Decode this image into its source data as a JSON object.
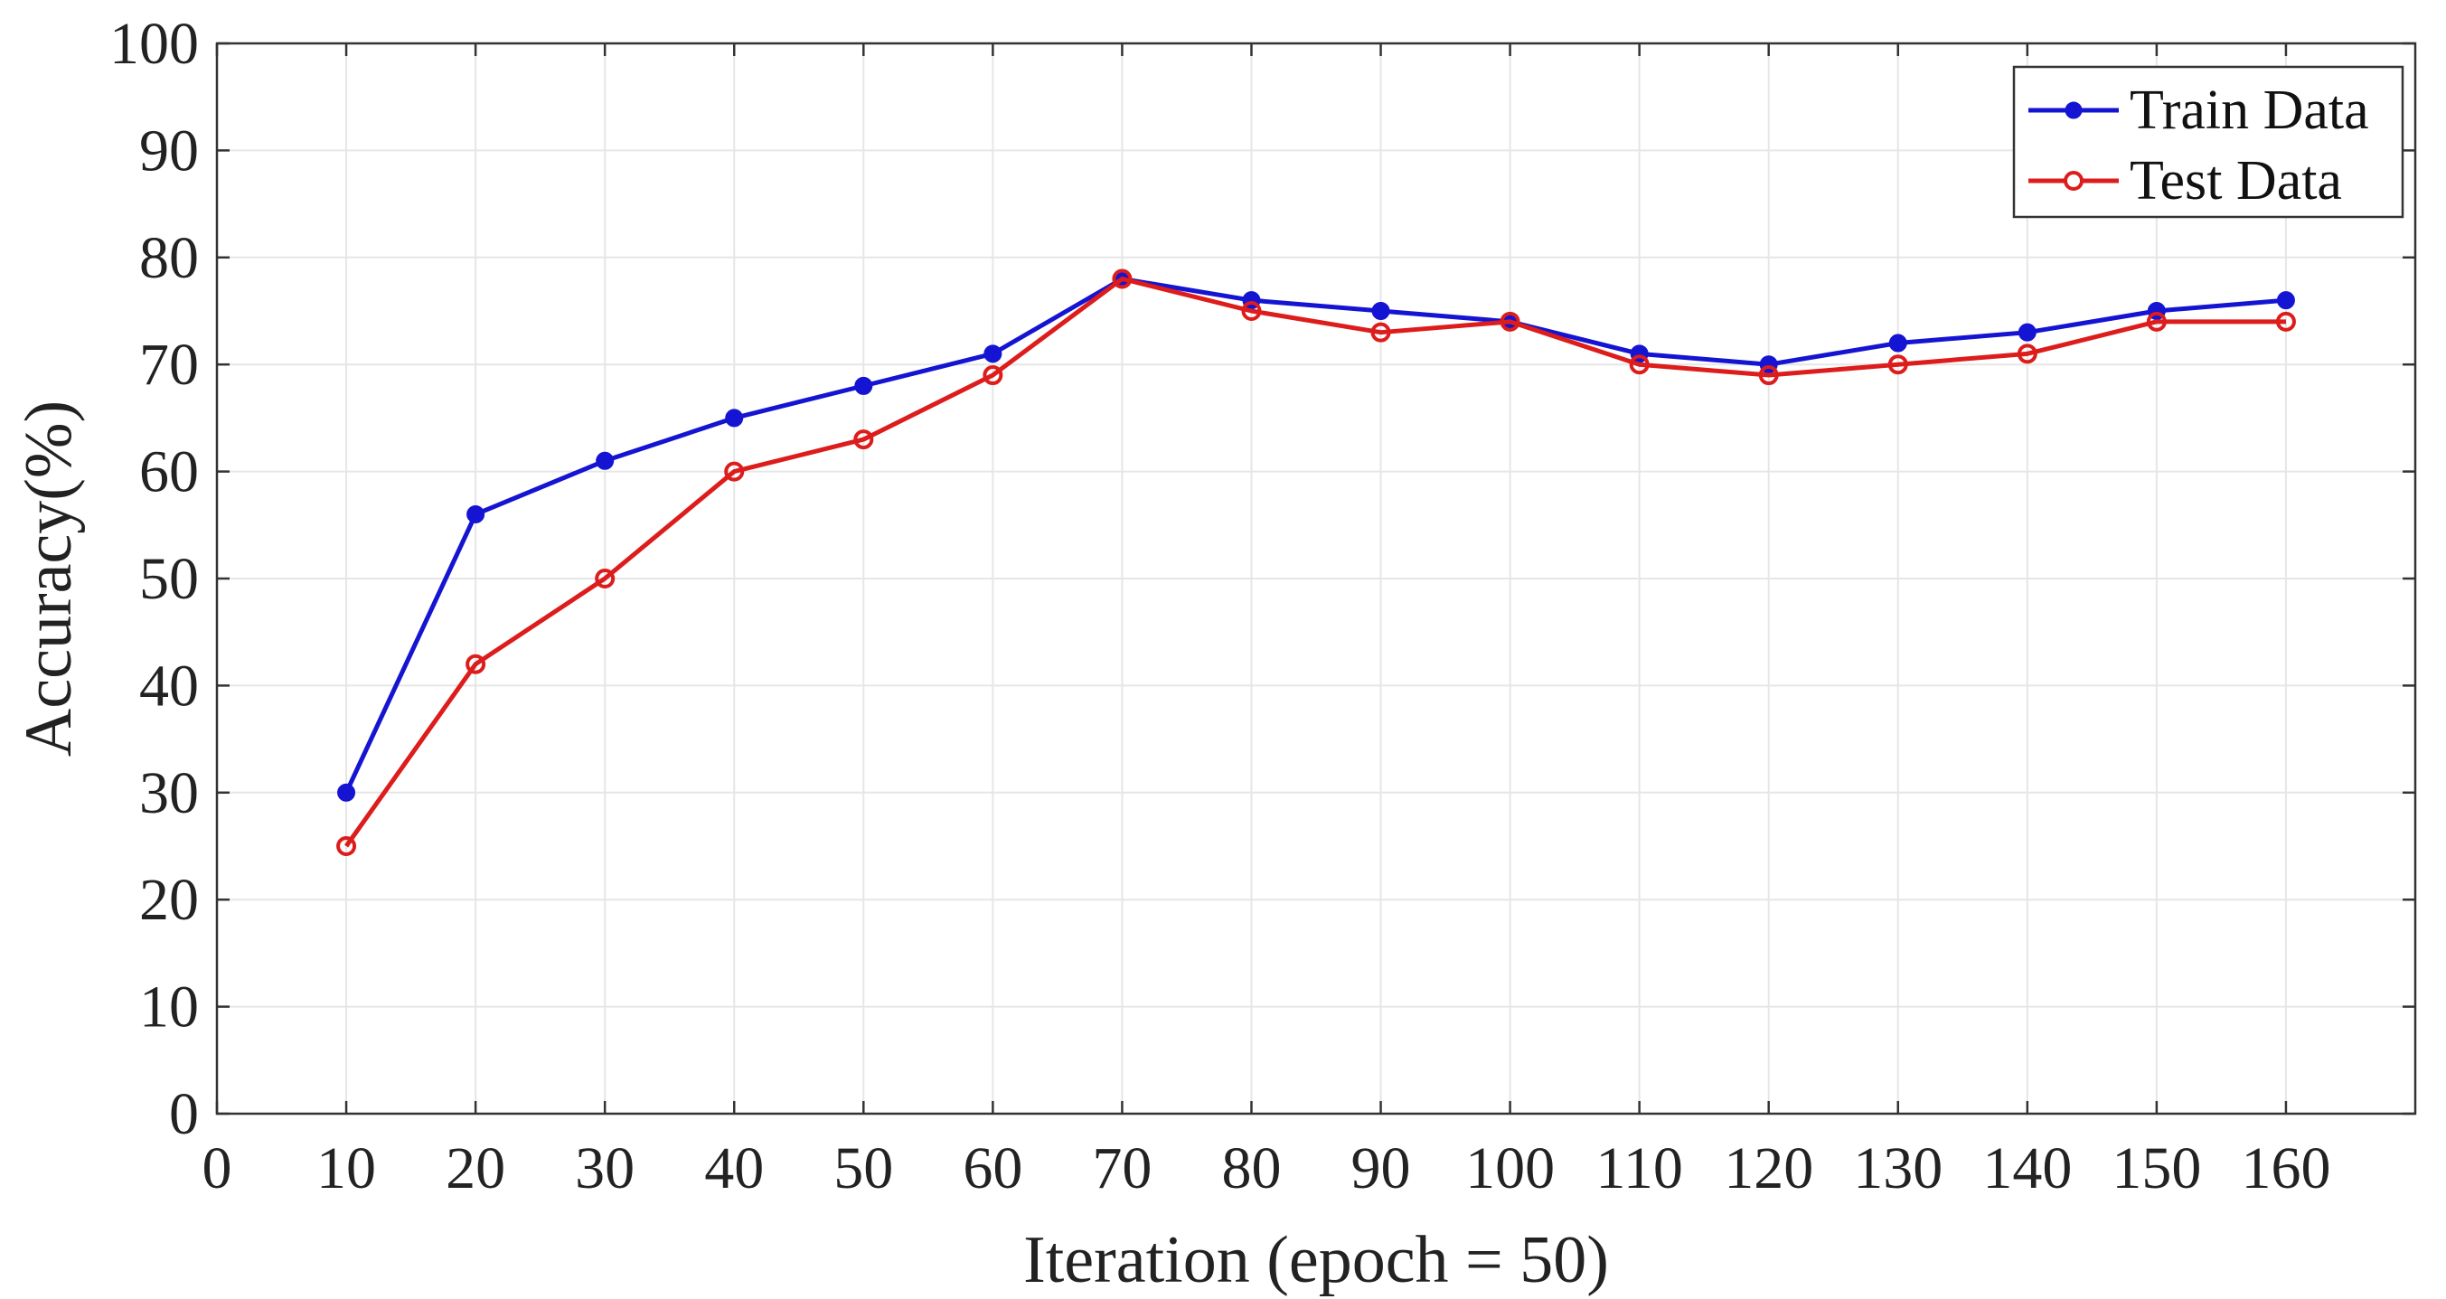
{
  "chart_data": {
    "type": "line",
    "xlabel": "Iteration (epoch = 50)",
    "ylabel": "Accuracy(%)",
    "xlim": [
      0,
      170
    ],
    "ylim": [
      0,
      100
    ],
    "x_ticks": [
      0,
      10,
      20,
      30,
      40,
      50,
      60,
      70,
      80,
      90,
      100,
      110,
      120,
      130,
      140,
      150,
      160
    ],
    "y_ticks": [
      0,
      10,
      20,
      30,
      40,
      50,
      60,
      70,
      80,
      90,
      100
    ],
    "grid": true,
    "legend_position": "top-right",
    "x": [
      10,
      20,
      30,
      40,
      50,
      60,
      70,
      80,
      90,
      100,
      110,
      120,
      130,
      140,
      150,
      160
    ],
    "series": [
      {
        "name": "Train Data",
        "color": "#1414d2",
        "marker": "filled-circle",
        "values": [
          30,
          56,
          61,
          65,
          68,
          71,
          78,
          76,
          75,
          74,
          71,
          70,
          72,
          73,
          75,
          76
        ]
      },
      {
        "name": "Test Data",
        "color": "#dd1c1c",
        "marker": "open-circle",
        "values": [
          25,
          42,
          50,
          60,
          63,
          69,
          78,
          75,
          73,
          74,
          70,
          69,
          70,
          71,
          74,
          74
        ]
      }
    ]
  }
}
